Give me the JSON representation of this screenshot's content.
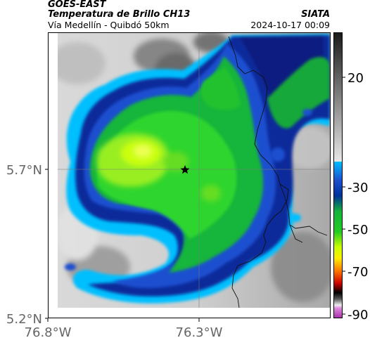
{
  "header": {
    "satellite": "GOES-EAST",
    "product": "Temperatura de Brillo CH13",
    "region": "Vía Medellín - Quibdó 50km",
    "org": "SIATA",
    "datetime": "2024-10-17 00:09"
  },
  "map": {
    "lat_ticks": [
      "5.7°N",
      "5.2°N"
    ],
    "lon_ticks": [
      "76.8°W",
      "76.3°W"
    ],
    "marker": "star-marker"
  },
  "colorbar": {
    "ticks": [
      "20",
      "-30",
      "-50",
      "-70",
      "-90"
    ],
    "colors": {
      "gray_top": "#1a1a1a",
      "gray_bottom": "#e8e8e8",
      "cyan": "#00bfff",
      "blue": "#003399",
      "green": "#22cc22",
      "lime": "#ccff00",
      "yellow": "#ffee00",
      "orange": "#ff7700",
      "red": "#cc0000",
      "black": "#000000",
      "magenta": "#aa33aa"
    }
  }
}
